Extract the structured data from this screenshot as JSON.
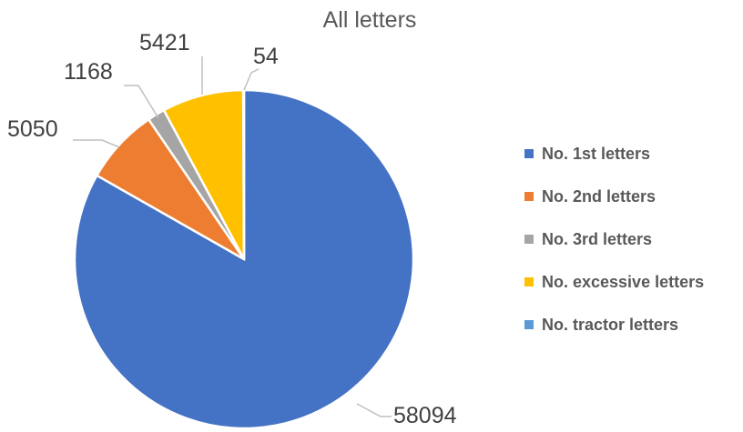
{
  "chart_data": {
    "type": "pie",
    "title": "All letters",
    "labels": [
      "No. 1st letters",
      "No. 2nd letters",
      "No. 3rd letters",
      "No. excessive letters",
      "No. tractor letters"
    ],
    "values": [
      58094,
      5050,
      1168,
      5421,
      54
    ],
    "colors": [
      "#4472C4",
      "#ED7D31",
      "#A5A5A5",
      "#FFC000",
      "#5B9BD5"
    ],
    "data_labels": [
      "58094",
      "5050",
      "1168",
      "5421",
      "54"
    ],
    "start_angle_deg": 0,
    "direction": "clockwise",
    "legend": "right"
  }
}
